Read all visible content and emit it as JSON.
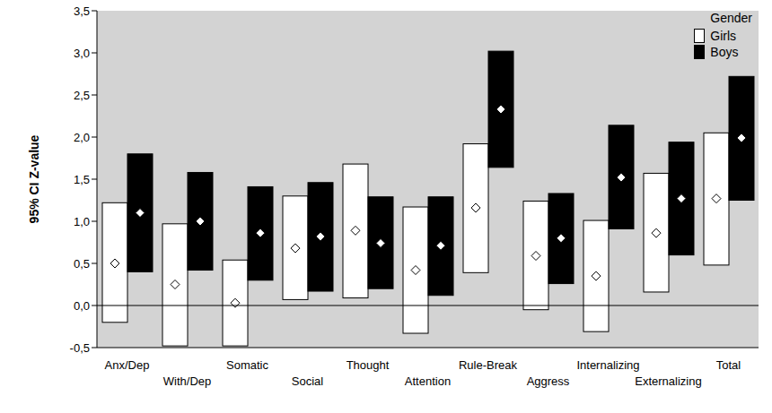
{
  "chart_data": {
    "type": "bar",
    "y_label": "95% CI Z-value",
    "categories": [
      "Anx/Dep",
      "With/Dep",
      "Somatic",
      "Social",
      "Thought",
      "Attention",
      "Rule-Break",
      "Aggress",
      "Internalizing",
      "Externalizing",
      "Total"
    ],
    "ylim": [
      -0.5,
      3.5
    ],
    "yticks": [
      {
        "value": -0.5,
        "label": "-0,5"
      },
      {
        "value": 0,
        "label": "0,0"
      },
      {
        "value": 0.5,
        "label": "0,5"
      },
      {
        "value": 1,
        "label": "1,0"
      },
      {
        "value": 1.5,
        "label": "1,5"
      },
      {
        "value": 2,
        "label": "2,0"
      },
      {
        "value": 2.5,
        "label": "2,5"
      },
      {
        "value": 3,
        "label": "3,0"
      },
      {
        "value": 3.5,
        "label": "3,5"
      }
    ],
    "grid": false,
    "legend": "upper right",
    "legend_title": "Gender",
    "marker": "diamond",
    "series": [
      {
        "name": "Girls",
        "color": "#ffffff",
        "values": [
          0.5,
          0.25,
          0.03,
          0.68,
          0.89,
          0.42,
          1.16,
          0.59,
          0.35,
          0.86,
          1.27
        ],
        "ci_low": [
          -0.2,
          -0.48,
          -0.48,
          0.07,
          0.09,
          -0.33,
          0.39,
          -0.05,
          -0.31,
          0.16,
          0.48
        ],
        "ci_high": [
          1.22,
          0.97,
          0.54,
          1.3,
          1.68,
          1.17,
          1.92,
          1.24,
          1.01,
          1.57,
          2.05
        ]
      },
      {
        "name": "Boys",
        "color": "#000000",
        "values": [
          1.1,
          1.0,
          0.86,
          0.82,
          0.74,
          0.71,
          2.33,
          0.8,
          1.52,
          1.27,
          1.99
        ],
        "ci_low": [
          0.4,
          0.42,
          0.3,
          0.17,
          0.2,
          0.12,
          1.64,
          0.26,
          0.91,
          0.6,
          1.25
        ],
        "ci_high": [
          1.8,
          1.58,
          1.41,
          1.46,
          1.29,
          1.29,
          3.02,
          1.33,
          2.14,
          1.94,
          2.72
        ]
      }
    ]
  }
}
